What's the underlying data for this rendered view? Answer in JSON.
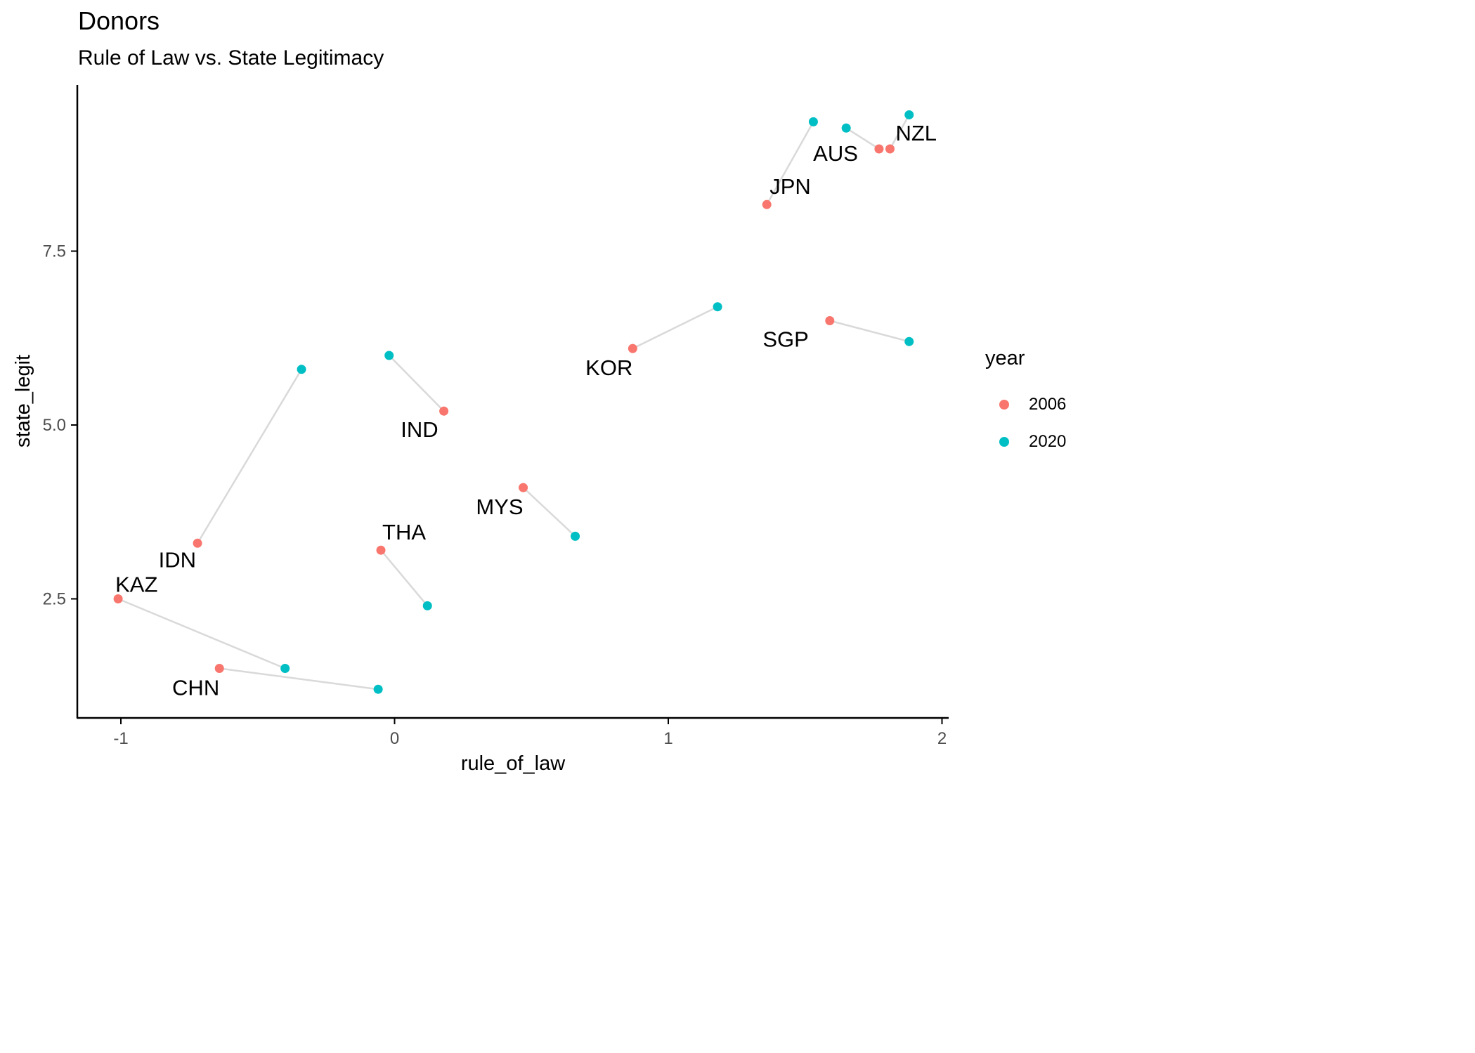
{
  "chart_data": {
    "type": "scatter",
    "title": "Donors",
    "subtitle": "Rule of Law vs. State Legitimacy",
    "xlabel": "rule_of_law",
    "ylabel": "state_legit",
    "xlim": [
      -1.15,
      2.02
    ],
    "ylim": [
      0.9,
      9.9
    ],
    "x_ticks": [
      -1,
      0,
      1,
      2
    ],
    "x_tick_labels": [
      "-1",
      "0",
      "1",
      "2"
    ],
    "y_ticks": [
      2.5,
      5.0,
      7.5
    ],
    "y_tick_labels": [
      "2.5",
      "5.0",
      "7.5"
    ],
    "grid": false,
    "legend": {
      "title": "year",
      "placement": "right"
    },
    "series": [
      {
        "name": "2006",
        "color": "#F8766D"
      },
      {
        "name": "2020",
        "color": "#00BFC4"
      }
    ],
    "connector_color": "#d9d9d9",
    "countries": [
      {
        "label": "NZL",
        "p2006": [
          1.81,
          8.97
        ],
        "p2020": [
          1.88,
          9.46
        ]
      },
      {
        "label": "AUS",
        "p2006": [
          1.77,
          8.97
        ],
        "p2020": [
          1.65,
          9.27
        ]
      },
      {
        "label": "JPN",
        "p2006": [
          1.36,
          8.17
        ],
        "p2020": [
          1.53,
          9.36
        ]
      },
      {
        "label": "SGP",
        "p2006": [
          1.59,
          6.5
        ],
        "p2020": [
          1.88,
          6.2
        ]
      },
      {
        "label": "KOR",
        "p2006": [
          0.87,
          6.1
        ],
        "p2020": [
          1.18,
          6.7
        ]
      },
      {
        "label": "IND",
        "p2006": [
          0.18,
          5.2
        ],
        "p2020": [
          -0.02,
          6.0
        ]
      },
      {
        "label": "MYS",
        "p2006": [
          0.47,
          4.1
        ],
        "p2020": [
          0.66,
          3.4
        ]
      },
      {
        "label": "THA",
        "p2006": [
          -0.05,
          3.2
        ],
        "p2020": [
          0.12,
          2.4
        ]
      },
      {
        "label": "IDN",
        "p2006": [
          -0.72,
          3.3
        ],
        "p2020": [
          -0.34,
          5.8
        ]
      },
      {
        "label": "KAZ",
        "p2006": [
          -1.01,
          2.5
        ],
        "p2020": [
          -0.4,
          1.5
        ]
      },
      {
        "label": "CHN",
        "p2006": [
          -0.64,
          1.5
        ],
        "p2020": [
          -0.06,
          1.2
        ]
      }
    ]
  }
}
